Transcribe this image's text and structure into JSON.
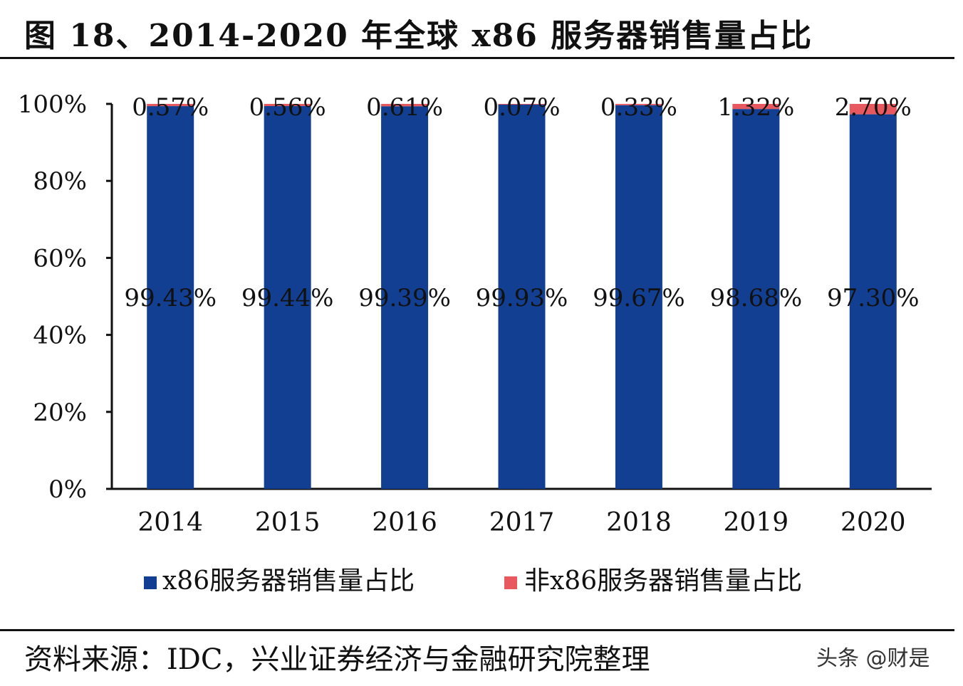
{
  "header": {
    "title": "图 18、2014-2020 年全球 x86 服务器销售量占比"
  },
  "footer": {
    "source": "资料来源：IDC，兴业证券经济与金融研究院整理",
    "watermark": "头条 @财是"
  },
  "chart_data": {
    "type": "bar",
    "stacked": true,
    "title": "图 18、2014-2020 年全球 x86 服务器销售量占比",
    "categories": [
      "2014",
      "2015",
      "2016",
      "2017",
      "2018",
      "2019",
      "2020"
    ],
    "series": [
      {
        "name": "x86服务器销售量占比",
        "color": "#123f91",
        "values": [
          99.43,
          99.44,
          99.39,
          99.93,
          99.67,
          98.68,
          97.3
        ],
        "labels": [
          "99.43%",
          "99.44%",
          "99.39%",
          "99.93%",
          "99.67%",
          "98.68%",
          "97.30%"
        ]
      },
      {
        "name": "非x86服务器销售量占比",
        "color": "#e8595f",
        "values": [
          0.57,
          0.56,
          0.61,
          0.07,
          0.33,
          1.32,
          2.7
        ],
        "labels": [
          "0.57%",
          "0.56%",
          "0.61%",
          "0.07%",
          "0.33%",
          "1.32%",
          "2.70%"
        ]
      }
    ],
    "yticks": [
      "0%",
      "20%",
      "40%",
      "60%",
      "80%",
      "100%"
    ],
    "ylim": [
      0,
      100
    ],
    "xlabel": "",
    "ylabel": "",
    "legend": "bottom",
    "grid": false
  }
}
